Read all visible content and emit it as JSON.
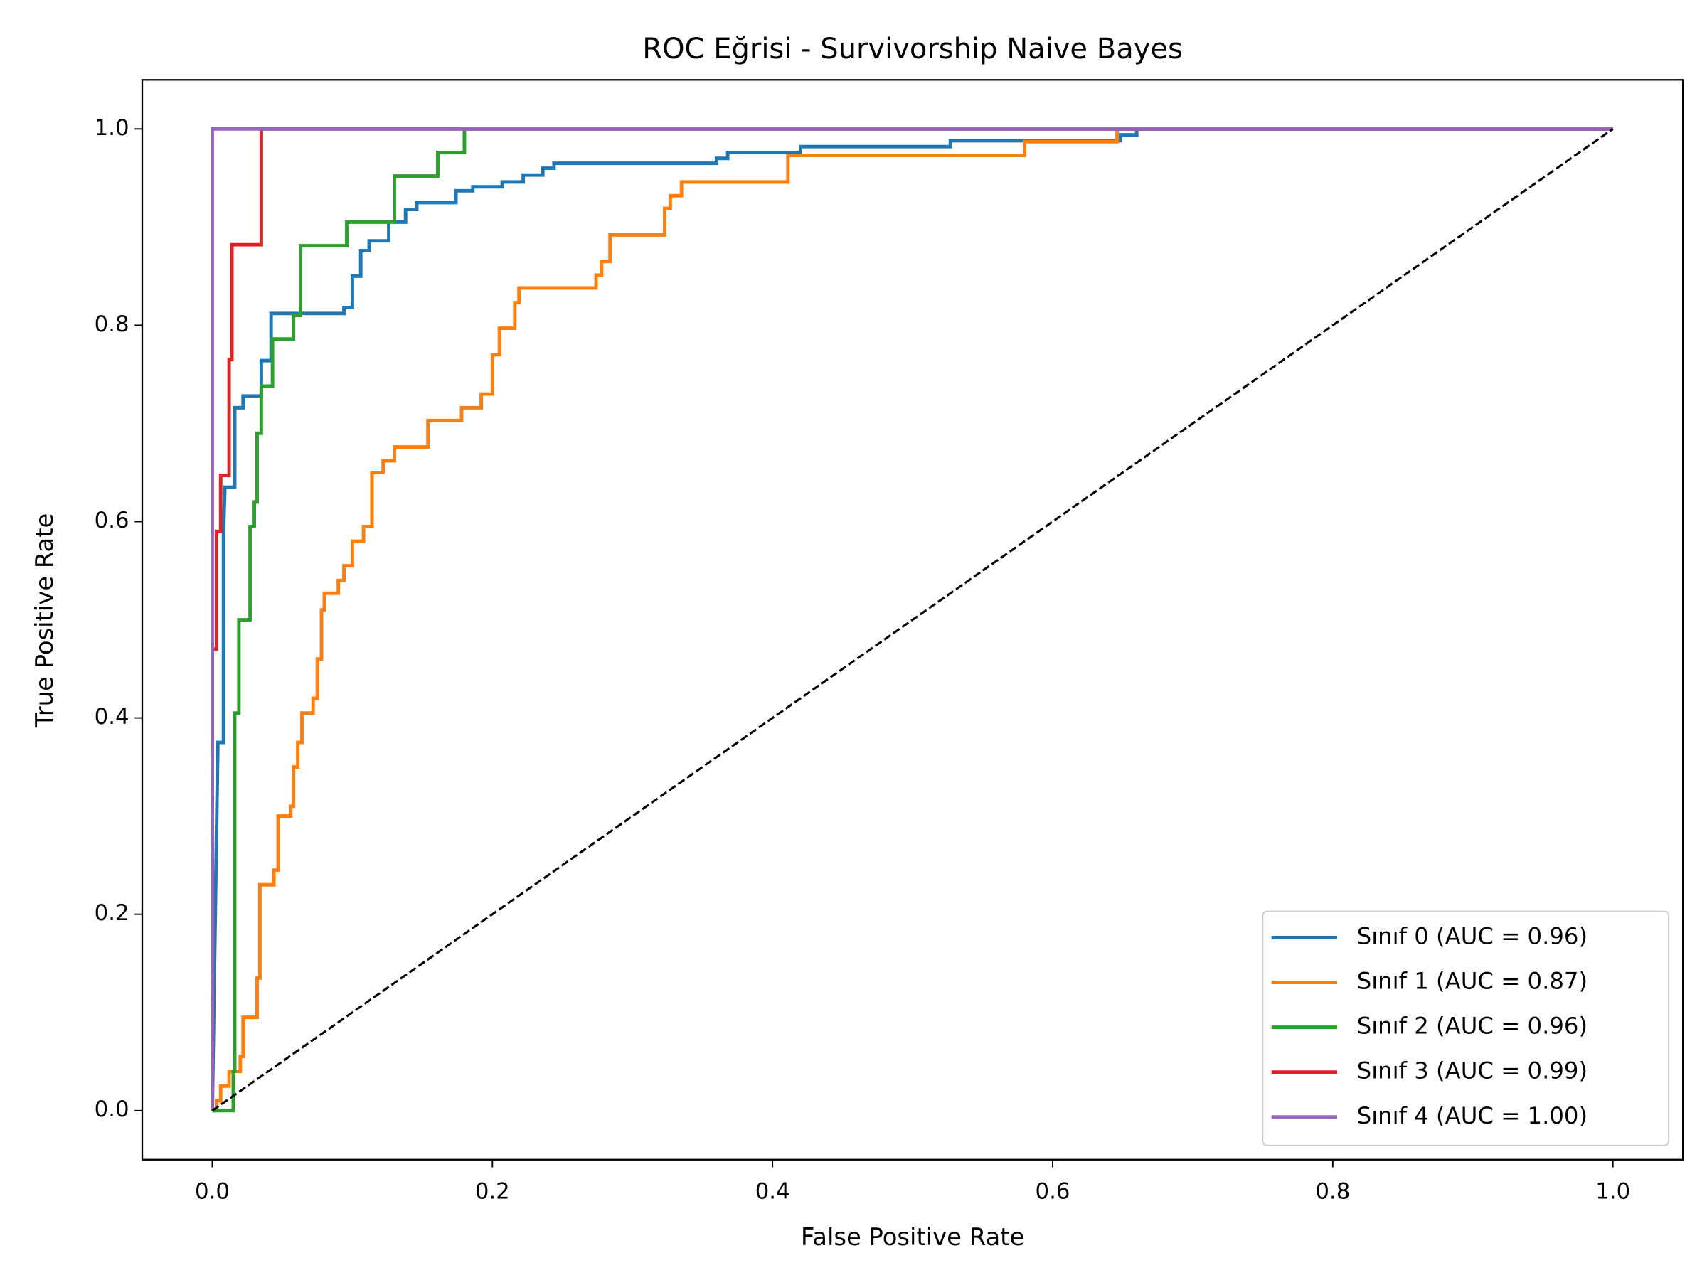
{
  "chart_data": {
    "type": "line",
    "title": "ROC Eğrisi - Survivorship Naive Bayes",
    "x_label": "False Positive Rate",
    "y_label": "True Positive Rate",
    "xlim": [
      -0.05,
      1.05
    ],
    "ylim": [
      -0.05,
      1.05
    ],
    "xticks": [
      {
        "value": 0,
        "label": "0.0"
      },
      0.2,
      0.4,
      0.6,
      0.8,
      {
        "value": 1,
        "label": "1.0"
      }
    ],
    "yticks": [
      {
        "value": 0,
        "label": "0.0"
      },
      0.2,
      0.4,
      0.6,
      0.8,
      {
        "value": 1,
        "label": "1.0"
      }
    ],
    "legend": "lower right",
    "reference_line": {
      "x": [
        0,
        1
      ],
      "values": [
        0,
        1
      ],
      "color": "#000000",
      "dashed": true
    },
    "series": [
      {
        "name": "Sınıf 0 (AUC = 0.96)",
        "color": "#1f77b4",
        "x": [
          0,
          0.004,
          0.008,
          0.008,
          0.009,
          0.016,
          0.016,
          0.022,
          0.022,
          0.035,
          0.035,
          0.042,
          0.042,
          0.094,
          0.094,
          0.1,
          0.1,
          0.106,
          0.106,
          0.112,
          0.112,
          0.126,
          0.126,
          0.138,
          0.138,
          0.146,
          0.146,
          0.174,
          0.174,
          0.186,
          0.186,
          0.207,
          0.207,
          0.222,
          0.222,
          0.236,
          0.236,
          0.244,
          0.244,
          0.36,
          0.36,
          0.368,
          0.368,
          0.42,
          0.42,
          0.527,
          0.527,
          0.648,
          0.648,
          0.66,
          0.66,
          1
        ],
        "values": [
          0,
          0.375,
          0.375,
          0.59,
          0.635,
          0.635,
          0.716,
          0.716,
          0.728,
          0.728,
          0.764,
          0.764,
          0.812,
          0.812,
          0.818,
          0.818,
          0.85,
          0.85,
          0.876,
          0.876,
          0.886,
          0.886,
          0.905,
          0.905,
          0.918,
          0.918,
          0.925,
          0.925,
          0.937,
          0.937,
          0.941,
          0.941,
          0.946,
          0.946,
          0.953,
          0.953,
          0.96,
          0.96,
          0.965,
          0.965,
          0.97,
          0.97,
          0.976,
          0.976,
          0.982,
          0.982,
          0.988,
          0.988,
          0.994,
          0.994,
          1,
          1
        ]
      },
      {
        "name": "Sınıf 1 (AUC = 0.87)",
        "color": "#ff7f0e",
        "x": [
          0,
          0.003,
          0.003,
          0.006,
          0.006,
          0.012,
          0.012,
          0.02,
          0.02,
          0.022,
          0.022,
          0.032,
          0.032,
          0.034,
          0.034,
          0.044,
          0.044,
          0.047,
          0.047,
          0.056,
          0.056,
          0.058,
          0.058,
          0.061,
          0.061,
          0.064,
          0.064,
          0.072,
          0.072,
          0.075,
          0.075,
          0.078,
          0.078,
          0.08,
          0.08,
          0.09,
          0.09,
          0.094,
          0.094,
          0.1,
          0.1,
          0.108,
          0.108,
          0.114,
          0.114,
          0.122,
          0.122,
          0.13,
          0.13,
          0.154,
          0.154,
          0.178,
          0.178,
          0.192,
          0.192,
          0.2,
          0.2,
          0.205,
          0.205,
          0.216,
          0.216,
          0.219,
          0.219,
          0.274,
          0.274,
          0.278,
          0.278,
          0.284,
          0.284,
          0.323,
          0.323,
          0.327,
          0.327,
          0.335,
          0.335,
          0.411,
          0.411,
          0.58,
          0.58,
          0.646,
          0.646,
          1
        ],
        "values": [
          0,
          0,
          0.01,
          0.01,
          0.025,
          0.025,
          0.04,
          0.04,
          0.055,
          0.055,
          0.095,
          0.095,
          0.135,
          0.135,
          0.23,
          0.23,
          0.245,
          0.245,
          0.3,
          0.3,
          0.31,
          0.31,
          0.35,
          0.35,
          0.375,
          0.375,
          0.405,
          0.405,
          0.42,
          0.42,
          0.46,
          0.46,
          0.51,
          0.51,
          0.527,
          0.527,
          0.54,
          0.54,
          0.555,
          0.555,
          0.58,
          0.58,
          0.595,
          0.595,
          0.65,
          0.65,
          0.662,
          0.662,
          0.676,
          0.676,
          0.703,
          0.703,
          0.716,
          0.716,
          0.73,
          0.73,
          0.77,
          0.77,
          0.797,
          0.797,
          0.823,
          0.823,
          0.838,
          0.838,
          0.851,
          0.851,
          0.865,
          0.865,
          0.892,
          0.892,
          0.919,
          0.919,
          0.932,
          0.932,
          0.946,
          0.946,
          0.973,
          0.973,
          0.987,
          0.987,
          1,
          1
        ]
      },
      {
        "name": "Sınıf 2 (AUC = 0.96)",
        "color": "#2ca02c",
        "x": [
          0,
          0.015,
          0.015,
          0.016,
          0.016,
          0.019,
          0.019,
          0.027,
          0.027,
          0.03,
          0.03,
          0.032,
          0.032,
          0.035,
          0.035,
          0.043,
          0.043,
          0.058,
          0.058,
          0.063,
          0.063,
          0.096,
          0.096,
          0.13,
          0.13,
          0.161,
          0.161,
          0.18,
          0.18,
          1
        ],
        "values": [
          0,
          0,
          0.04,
          0.04,
          0.405,
          0.405,
          0.5,
          0.5,
          0.595,
          0.595,
          0.62,
          0.62,
          0.69,
          0.69,
          0.738,
          0.738,
          0.786,
          0.786,
          0.81,
          0.81,
          0.881,
          0.881,
          0.905,
          0.905,
          0.952,
          0.952,
          0.976,
          0.976,
          1,
          1
        ]
      },
      {
        "name": "Sınıf 3 (AUC = 0.99)",
        "color": "#d62728",
        "x": [
          0,
          0,
          0.003,
          0.003,
          0.006,
          0.006,
          0.012,
          0.012,
          0.014,
          0.014,
          0.035,
          0.035,
          1
        ],
        "values": [
          0,
          0.47,
          0.47,
          0.59,
          0.59,
          0.647,
          0.647,
          0.765,
          0.765,
          0.882,
          0.882,
          1,
          1
        ]
      },
      {
        "name": "Sınıf 4 (AUC = 1.00)",
        "color": "#9467bd",
        "x": [
          0,
          0,
          1
        ],
        "values": [
          0,
          1,
          1
        ]
      }
    ]
  }
}
